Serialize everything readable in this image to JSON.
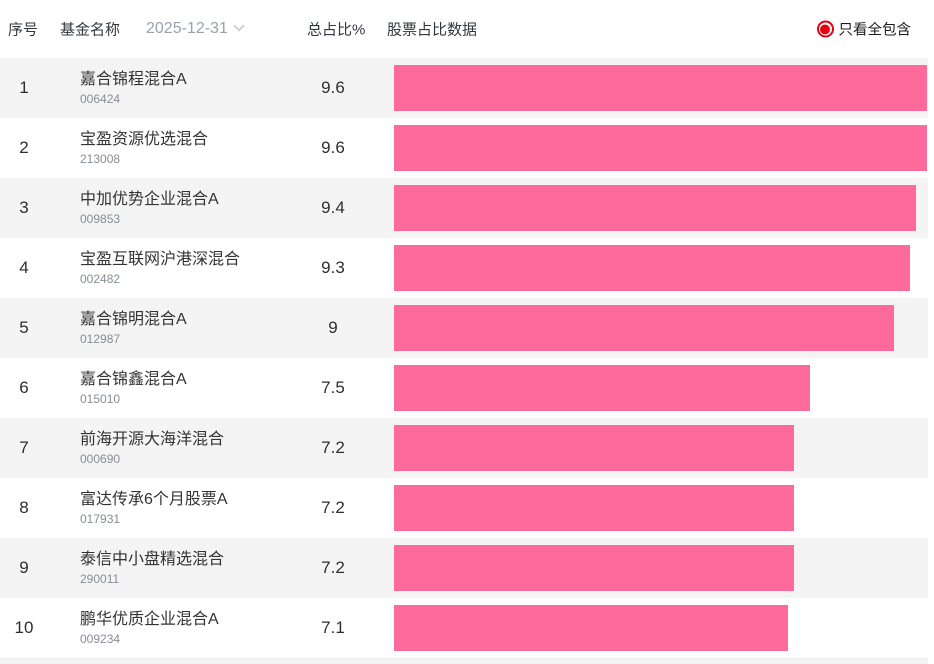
{
  "header": {
    "col_rank": "序号",
    "col_name": "基金名称",
    "date_filter": "2025-12-31",
    "col_total": "总占比%",
    "col_bar": "股票占比数据",
    "radio_label": "只看全包含"
  },
  "colors": {
    "bar": "#fd6a9b",
    "row_alt": "#f4f4f5",
    "radio_red": "#e60012"
  },
  "rows": [
    {
      "rank": "1",
      "name": "嘉合锦程混合A",
      "code": "006424",
      "total": "9.6",
      "value": 9.6
    },
    {
      "rank": "2",
      "name": "宝盈资源优选混合",
      "code": "213008",
      "total": "9.6",
      "value": 9.6
    },
    {
      "rank": "3",
      "name": "中加优势企业混合A",
      "code": "009853",
      "total": "9.4",
      "value": 9.4
    },
    {
      "rank": "4",
      "name": "宝盈互联网沪港深混合",
      "code": "002482",
      "total": "9.3",
      "value": 9.3
    },
    {
      "rank": "5",
      "name": "嘉合锦明混合A",
      "code": "012987",
      "total": "9",
      "value": 9
    },
    {
      "rank": "6",
      "name": "嘉合锦鑫混合A",
      "code": "015010",
      "total": "7.5",
      "value": 7.5
    },
    {
      "rank": "7",
      "name": "前海开源大海洋混合",
      "code": "000690",
      "total": "7.2",
      "value": 7.2
    },
    {
      "rank": "8",
      "name": "富达传承6个月股票A",
      "code": "017931",
      "total": "7.2",
      "value": 7.2
    },
    {
      "rank": "9",
      "name": "泰信中小盘精选混合",
      "code": "290011",
      "total": "7.2",
      "value": 7.2
    },
    {
      "rank": "10",
      "name": "鹏华优质企业混合A",
      "code": "009234",
      "total": "7.1",
      "value": 7.1
    }
  ],
  "chart_data": {
    "type": "bar",
    "orientation": "horizontal",
    "title": "股票占比数据",
    "categories": [
      "嘉合锦程混合A",
      "宝盈资源优选混合",
      "中加优势企业混合A",
      "宝盈互联网沪港深混合",
      "嘉合锦明混合A",
      "嘉合锦鑫混合A",
      "前海开源大海洋混合",
      "富达传承6个月股票A",
      "泰信中小盘精选混合",
      "鹏华优质企业混合A"
    ],
    "values": [
      9.6,
      9.6,
      9.4,
      9.3,
      9,
      7.5,
      7.2,
      7.2,
      7.2,
      7.1
    ],
    "xlabel": "总占比%",
    "xlim": [
      0,
      9.65
    ],
    "bar_color": "#fd6a9b",
    "grid": false,
    "legend": false
  }
}
